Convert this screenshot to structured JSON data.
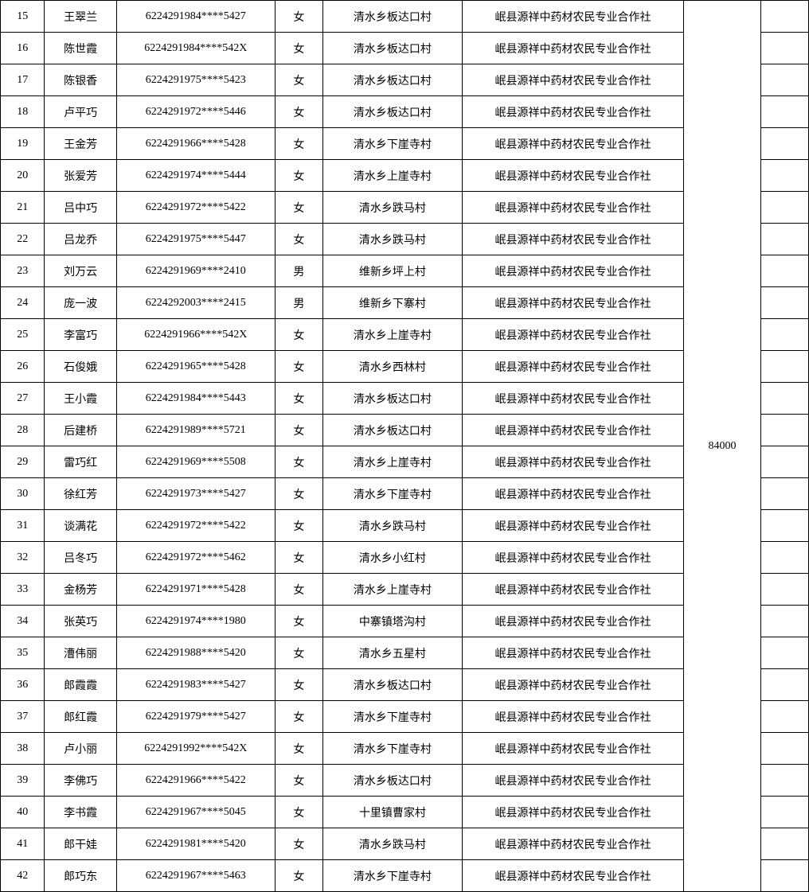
{
  "table": {
    "amount_merged": "84000",
    "rows": [
      {
        "idx": "15",
        "name": "王翠兰",
        "id": "6224291984****5427",
        "sex": "女",
        "addr": "清水乡板达口村",
        "org": "岷县源祥中药材农民专业合作社",
        "note": ""
      },
      {
        "idx": "16",
        "name": "陈世霞",
        "id": "6224291984****542X",
        "sex": "女",
        "addr": "清水乡板达口村",
        "org": "岷县源祥中药材农民专业合作社",
        "note": ""
      },
      {
        "idx": "17",
        "name": "陈银香",
        "id": "6224291975****5423",
        "sex": "女",
        "addr": "清水乡板达口村",
        "org": "岷县源祥中药材农民专业合作社",
        "note": ""
      },
      {
        "idx": "18",
        "name": "卢平巧",
        "id": "6224291972****5446",
        "sex": "女",
        "addr": "清水乡板达口村",
        "org": "岷县源祥中药材农民专业合作社",
        "note": ""
      },
      {
        "idx": "19",
        "name": "王金芳",
        "id": "6224291966****5428",
        "sex": "女",
        "addr": "清水乡下崖寺村",
        "org": "岷县源祥中药材农民专业合作社",
        "note": ""
      },
      {
        "idx": "20",
        "name": "张爱芳",
        "id": "6224291974****5444",
        "sex": "女",
        "addr": "清水乡上崖寺村",
        "org": "岷县源祥中药材农民专业合作社",
        "note": ""
      },
      {
        "idx": "21",
        "name": "吕中巧",
        "id": "6224291972****5422",
        "sex": "女",
        "addr": "清水乡跌马村",
        "org": "岷县源祥中药材农民专业合作社",
        "note": ""
      },
      {
        "idx": "22",
        "name": "吕龙乔",
        "id": "6224291975****5447",
        "sex": "女",
        "addr": "清水乡跌马村",
        "org": "岷县源祥中药材农民专业合作社",
        "note": ""
      },
      {
        "idx": "23",
        "name": "刘万云",
        "id": "6224291969****2410",
        "sex": "男",
        "addr": "维新乡坪上村",
        "org": "岷县源祥中药材农民专业合作社",
        "note": ""
      },
      {
        "idx": "24",
        "name": "庞一波",
        "id": "6224292003****2415",
        "sex": "男",
        "addr": "维新乡下寨村",
        "org": "岷县源祥中药材农民专业合作社",
        "note": ""
      },
      {
        "idx": "25",
        "name": "李富巧",
        "id": "6224291966****542X",
        "sex": "女",
        "addr": "清水乡上崖寺村",
        "org": "岷县源祥中药材农民专业合作社",
        "note": ""
      },
      {
        "idx": "26",
        "name": "石俊娥",
        "id": "6224291965****5428",
        "sex": "女",
        "addr": "清水乡西林村",
        "org": "岷县源祥中药材农民专业合作社",
        "note": ""
      },
      {
        "idx": "27",
        "name": "王小霞",
        "id": "6224291984****5443",
        "sex": "女",
        "addr": "清水乡板达口村",
        "org": "岷县源祥中药材农民专业合作社",
        "note": ""
      },
      {
        "idx": "28",
        "name": "后建桥",
        "id": "6224291989****5721",
        "sex": "女",
        "addr": "清水乡板达口村",
        "org": "岷县源祥中药材农民专业合作社",
        "note": ""
      },
      {
        "idx": "29",
        "name": "雷巧红",
        "id": "6224291969****5508",
        "sex": "女",
        "addr": "清水乡上崖寺村",
        "org": "岷县源祥中药材农民专业合作社",
        "note": ""
      },
      {
        "idx": "30",
        "name": "徐红芳",
        "id": "6224291973****5427",
        "sex": "女",
        "addr": "清水乡下崖寺村",
        "org": "岷县源祥中药材农民专业合作社",
        "note": ""
      },
      {
        "idx": "31",
        "name": "谈满花",
        "id": "6224291972****5422",
        "sex": "女",
        "addr": "清水乡跌马村",
        "org": "岷县源祥中药材农民专业合作社",
        "note": ""
      },
      {
        "idx": "32",
        "name": "吕冬巧",
        "id": "6224291972****5462",
        "sex": "女",
        "addr": "清水乡小红村",
        "org": "岷县源祥中药材农民专业合作社",
        "note": ""
      },
      {
        "idx": "33",
        "name": "金杨芳",
        "id": "6224291971****5428",
        "sex": "女",
        "addr": "清水乡上崖寺村",
        "org": "岷县源祥中药材农民专业合作社",
        "note": ""
      },
      {
        "idx": "34",
        "name": "张英巧",
        "id": "6224291974****1980",
        "sex": "女",
        "addr": "中寨镇塔沟村",
        "org": "岷县源祥中药材农民专业合作社",
        "note": ""
      },
      {
        "idx": "35",
        "name": "漕伟丽",
        "id": "6224291988****5420",
        "sex": "女",
        "addr": "清水乡五星村",
        "org": "岷县源祥中药材农民专业合作社",
        "note": ""
      },
      {
        "idx": "36",
        "name": "郎霞霞",
        "id": "6224291983****5427",
        "sex": "女",
        "addr": "清水乡板达口村",
        "org": "岷县源祥中药材农民专业合作社",
        "note": ""
      },
      {
        "idx": "37",
        "name": "郎红霞",
        "id": "6224291979****5427",
        "sex": "女",
        "addr": "清水乡下崖寺村",
        "org": "岷县源祥中药材农民专业合作社",
        "note": ""
      },
      {
        "idx": "38",
        "name": "卢小丽",
        "id": "6224291992****542X",
        "sex": "女",
        "addr": "清水乡下崖寺村",
        "org": "岷县源祥中药材农民专业合作社",
        "note": ""
      },
      {
        "idx": "39",
        "name": "李佛巧",
        "id": "6224291966****5422",
        "sex": "女",
        "addr": "清水乡板达口村",
        "org": "岷县源祥中药材农民专业合作社",
        "note": ""
      },
      {
        "idx": "40",
        "name": "李书霞",
        "id": "6224291967****5045",
        "sex": "女",
        "addr": "十里镇曹家村",
        "org": "岷县源祥中药材农民专业合作社",
        "note": ""
      },
      {
        "idx": "41",
        "name": "郎干娃",
        "id": "6224291981****5420",
        "sex": "女",
        "addr": "清水乡跌马村",
        "org": "岷县源祥中药材农民专业合作社",
        "note": ""
      },
      {
        "idx": "42",
        "name": "郎巧东",
        "id": "6224291967****5463",
        "sex": "女",
        "addr": "清水乡下崖寺村",
        "org": "岷县源祥中药材农民专业合作社",
        "note": ""
      }
    ]
  }
}
